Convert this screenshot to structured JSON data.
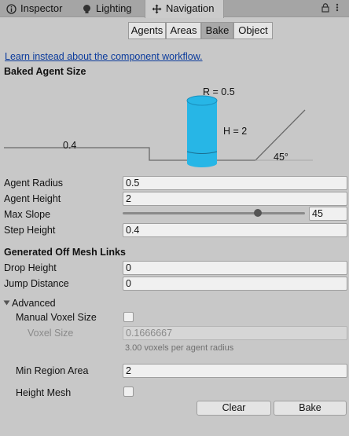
{
  "window_tabs": [
    {
      "label": "Inspector",
      "icon": "info-icon"
    },
    {
      "label": "Lighting",
      "icon": "bulb-icon"
    },
    {
      "label": "Navigation",
      "icon": "navigation-icon"
    }
  ],
  "toolbar": {
    "tabs": [
      "Agents",
      "Areas",
      "Bake",
      "Object"
    ],
    "active": "Bake"
  },
  "link_text": "Learn instead about the component workflow.",
  "baked_agent_size": {
    "header": "Baked Agent Size",
    "diagram": {
      "radius_label": "R = 0.5",
      "height_label": "H = 2",
      "step_label": "0.4",
      "slope_label": "45°"
    }
  },
  "fields": {
    "agent_radius": {
      "label": "Agent Radius",
      "value": "0.5"
    },
    "agent_height": {
      "label": "Agent Height",
      "value": "2"
    },
    "max_slope": {
      "label": "Max Slope",
      "value": "45",
      "fraction": 0.75
    },
    "step_height": {
      "label": "Step Height",
      "value": "0.4"
    }
  },
  "off_mesh": {
    "header": "Generated Off Mesh Links",
    "drop_height": {
      "label": "Drop Height",
      "value": "0"
    },
    "jump_distance": {
      "label": "Jump Distance",
      "value": "0"
    }
  },
  "advanced": {
    "label": "Advanced",
    "manual_voxel_size": {
      "label": "Manual Voxel Size",
      "checked": false
    },
    "voxel_size": {
      "label": "Voxel Size",
      "value": "0.1666667",
      "hint": "3.00 voxels per agent radius"
    },
    "min_region_area": {
      "label": "Min Region Area",
      "value": "2"
    },
    "height_mesh": {
      "label": "Height Mesh",
      "checked": false
    }
  },
  "buttons": {
    "clear": "Clear",
    "bake": "Bake"
  },
  "colors": {
    "accent_cylinder": "#27b6e6",
    "link": "#0b3b9c"
  }
}
